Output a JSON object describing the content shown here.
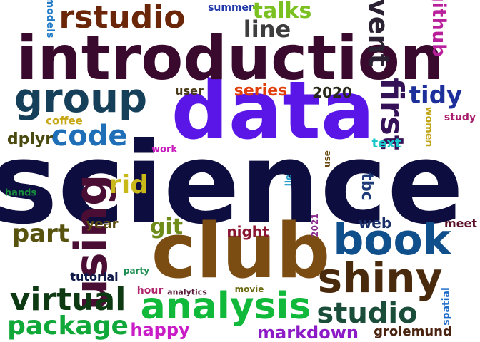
{
  "words": [
    {
      "text": "science",
      "color": "#0d0d3f"
    },
    {
      "text": "data",
      "color": "#5a16e6"
    },
    {
      "text": "introduction",
      "color": "#3a0a2e"
    },
    {
      "text": "club",
      "color": "#7c4d12"
    },
    {
      "text": "analysis",
      "color": "#10b93a"
    },
    {
      "text": "using",
      "color": "#4a0d33"
    },
    {
      "text": "book",
      "color": "#0e4f8c"
    },
    {
      "text": "shiny",
      "color": "#4a2a0d"
    },
    {
      "text": "group",
      "color": "#16405a"
    },
    {
      "text": "virtual",
      "color": "#0e3a13"
    },
    {
      "text": "package",
      "color": "#11a83a"
    },
    {
      "text": "studio",
      "color": "#1b4e3a"
    },
    {
      "text": "code",
      "color": "#1e6fb8"
    },
    {
      "text": "first",
      "color": "#351257"
    },
    {
      "text": "rstudio",
      "color": "#6b2508"
    },
    {
      "text": "part",
      "color": "#57520e"
    },
    {
      "text": "event",
      "color": "#2a2233"
    },
    {
      "text": "line",
      "color": "#3d3d3d"
    },
    {
      "text": "tidy",
      "color": "#1c2f9a"
    },
    {
      "text": "markdown",
      "color": "#8c1ac7"
    },
    {
      "text": "happy",
      "color": "#c91cc7"
    },
    {
      "text": "talks",
      "color": "#7ac020"
    },
    {
      "text": "github",
      "color": "#b81f9a"
    },
    {
      "text": "rid",
      "color": "#c8b81a"
    },
    {
      "text": "git",
      "color": "#6f8c1a"
    },
    {
      "text": "grolemund",
      "color": "#4a2310"
    },
    {
      "text": "series",
      "color": "#e03f0c"
    },
    {
      "text": "night",
      "color": "#8a1530"
    },
    {
      "text": "2020",
      "color": "#2a2a1c"
    },
    {
      "text": "dplyr",
      "color": "#4a4a10"
    },
    {
      "text": "tbc",
      "color": "#1f3a78"
    },
    {
      "text": "web",
      "color": "#1b2f6b"
    },
    {
      "text": "women",
      "color": "#c1a416"
    },
    {
      "text": "text",
      "color": "#1cc7c9"
    },
    {
      "text": "meet",
      "color": "#5a1026"
    },
    {
      "text": "year",
      "color": "#5a4a10"
    },
    {
      "text": "user",
      "color": "#4a3a1a"
    },
    {
      "text": "tutorial",
      "color": "#101a4a"
    },
    {
      "text": "hour",
      "color": "#b0256b"
    },
    {
      "text": "coffee",
      "color": "#c7a716"
    },
    {
      "text": "study",
      "color": "#a81c6b"
    },
    {
      "text": "models",
      "color": "#1f7ac7"
    },
    {
      "text": "summer",
      "color": "#2138a8"
    },
    {
      "text": "work",
      "color": "#c71cbe"
    },
    {
      "text": "use",
      "color": "#6b4a10"
    },
    {
      "text": "ile",
      "color": "#1c9ac7"
    },
    {
      "text": "hands",
      "color": "#168c3a"
    },
    {
      "text": "2021",
      "color": "#8a2a8c"
    },
    {
      "text": "party",
      "color": "#1c8c50"
    },
    {
      "text": "analytics",
      "color": "#5a1c3a"
    },
    {
      "text": "movie",
      "color": "#6b6a10"
    },
    {
      "text": "spatial",
      "color": "#1c6bc7"
    }
  ]
}
